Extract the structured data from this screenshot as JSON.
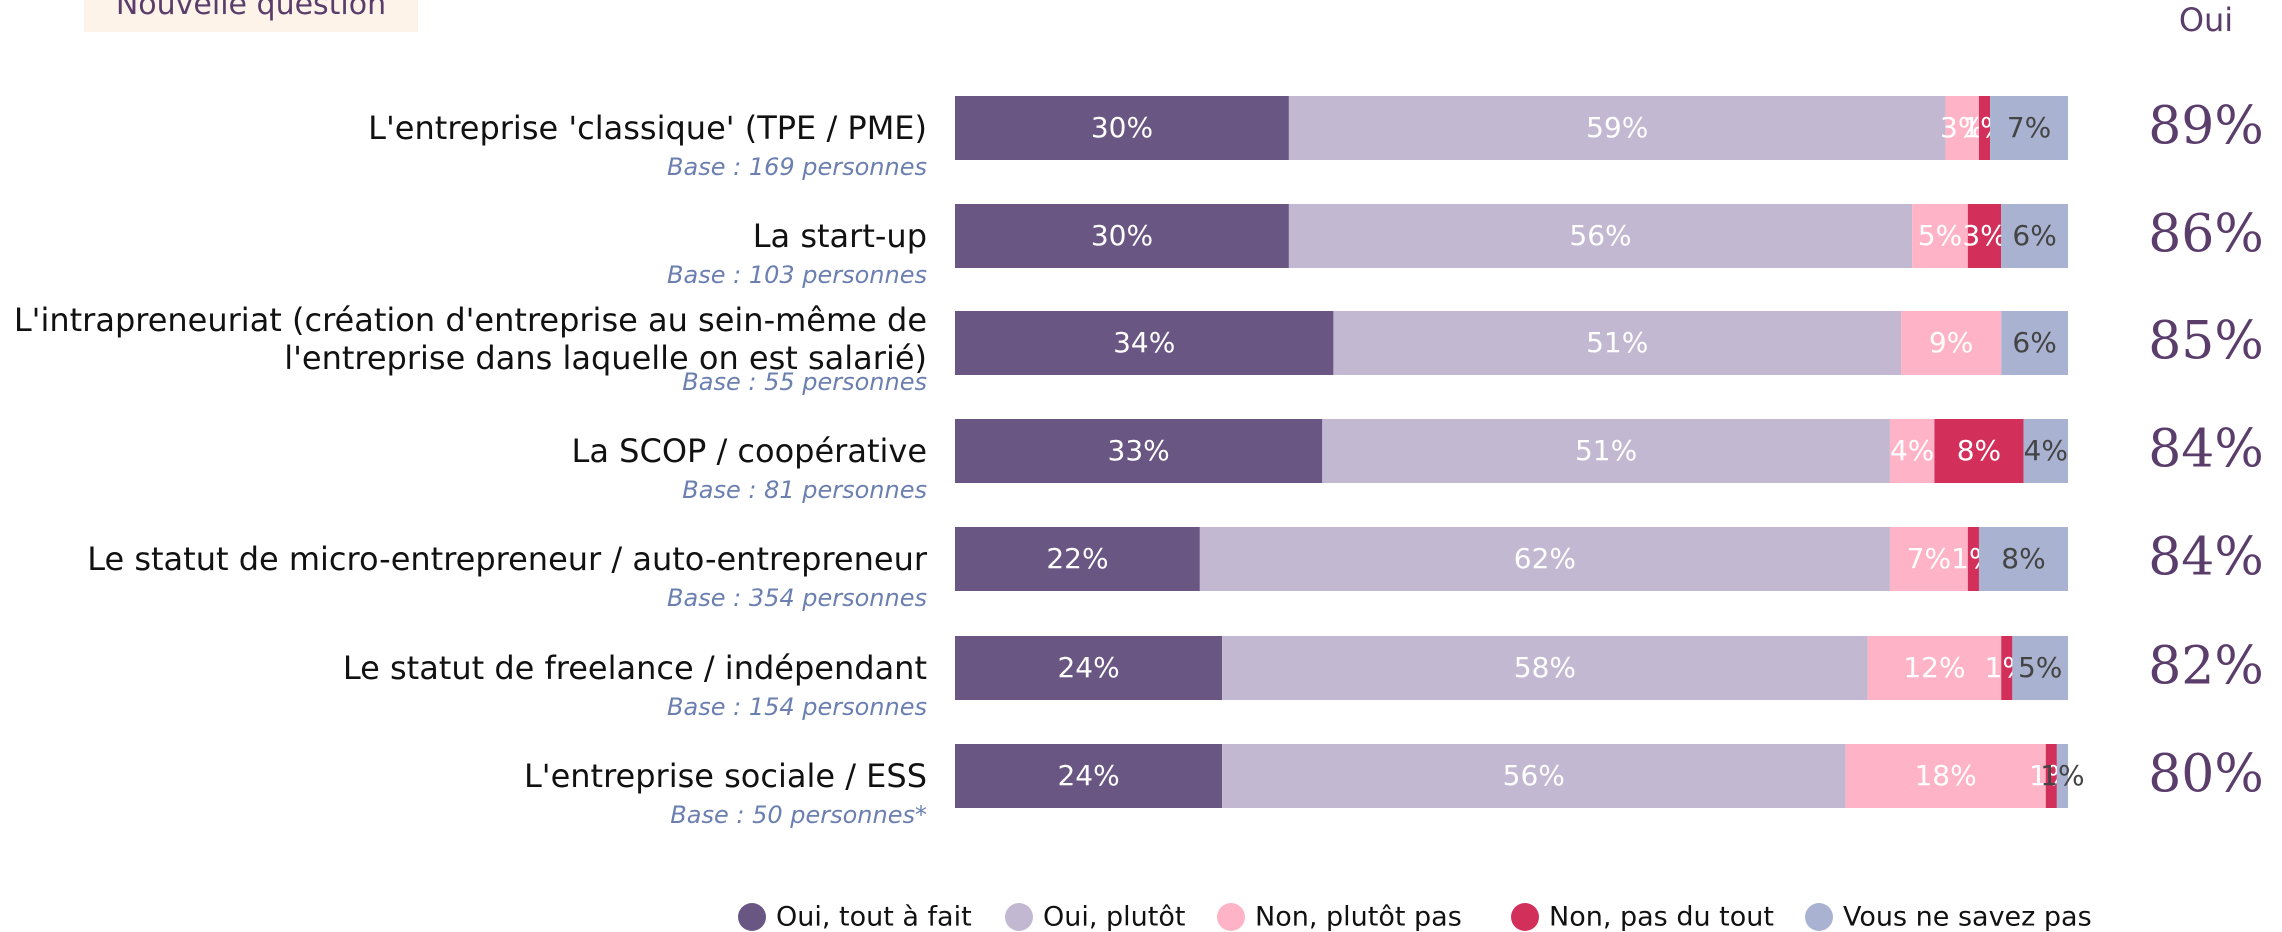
{
  "button": "Nouvelle question",
  "chart_data": {
    "type": "bar",
    "orientation": "horizontal",
    "stacked": true,
    "categories": [
      "L'entreprise 'classique' (TPE / PME)",
      "La start-up",
      "L'intrapreneuriat (création d'entreprise au sein-même de\nl'entreprise dans laquelle on est salarié)",
      "La SCOP / coopérative",
      "Le statut de micro-entrepreneur / auto-entrepreneur",
      "Le statut de freelance / indépendant",
      "L'entreprise sociale / ESS"
    ],
    "bases": [
      "Base : 169 personnes",
      "Base : 103 personnes",
      "Base : 55 personnes",
      "Base : 81 personnes",
      "Base : 354 personnes",
      "Base : 154 personnes",
      "Base : 50 personnes*"
    ],
    "xlim": [
      0,
      100
    ],
    "series": [
      {
        "name": "Oui, tout à fait",
        "color": "#6a5683",
        "text_color": "#ffffff",
        "values": [
          30,
          30,
          34,
          33,
          22,
          24,
          24
        ],
        "value_labels": [
          "30%",
          "30%",
          "34%",
          "33%",
          "22%",
          "24%",
          "24%"
        ]
      },
      {
        "name": "Oui, plutôt",
        "color": "#c3b8d1",
        "text_color": "#ffffff",
        "values": [
          59,
          56,
          51,
          51,
          62,
          58,
          56
        ],
        "value_labels": [
          "59%",
          "56%",
          "51%",
          "51%",
          "62%",
          "58%",
          "56%"
        ]
      },
      {
        "name": "Non, plutôt pas",
        "color": "#ffb3c6",
        "text_color": "#ffffff",
        "values": [
          3,
          5,
          9,
          4,
          7,
          12,
          18
        ],
        "value_labels": [
          "3%",
          "5%",
          "9%",
          "4%",
          "7%",
          "12%",
          "18%"
        ]
      },
      {
        "name": "Non, pas du tout",
        "color": "#d2305a",
        "text_color": "#ffffff",
        "values": [
          1,
          3,
          null,
          8,
          1,
          1,
          1
        ],
        "value_labels": [
          "1%",
          "3%",
          null,
          "8%",
          "1%",
          "1%",
          "1%"
        ]
      },
      {
        "name": "Vous ne savez pas",
        "color": "#a9b3d1",
        "text_color": "#444444",
        "values": [
          7,
          6,
          6,
          4,
          8,
          5,
          1
        ],
        "value_labels": [
          "7%",
          "6%",
          "6%",
          "4%",
          "8%",
          "5%",
          "1%"
        ]
      }
    ],
    "totals": {
      "name": "Oui",
      "color": "#5a3d6b",
      "values": [
        89,
        86,
        85,
        84,
        84,
        82,
        80
      ],
      "value_labels": [
        "89%",
        "86%",
        "85%",
        "84%",
        "84%",
        "82%",
        "80%"
      ]
    }
  }
}
